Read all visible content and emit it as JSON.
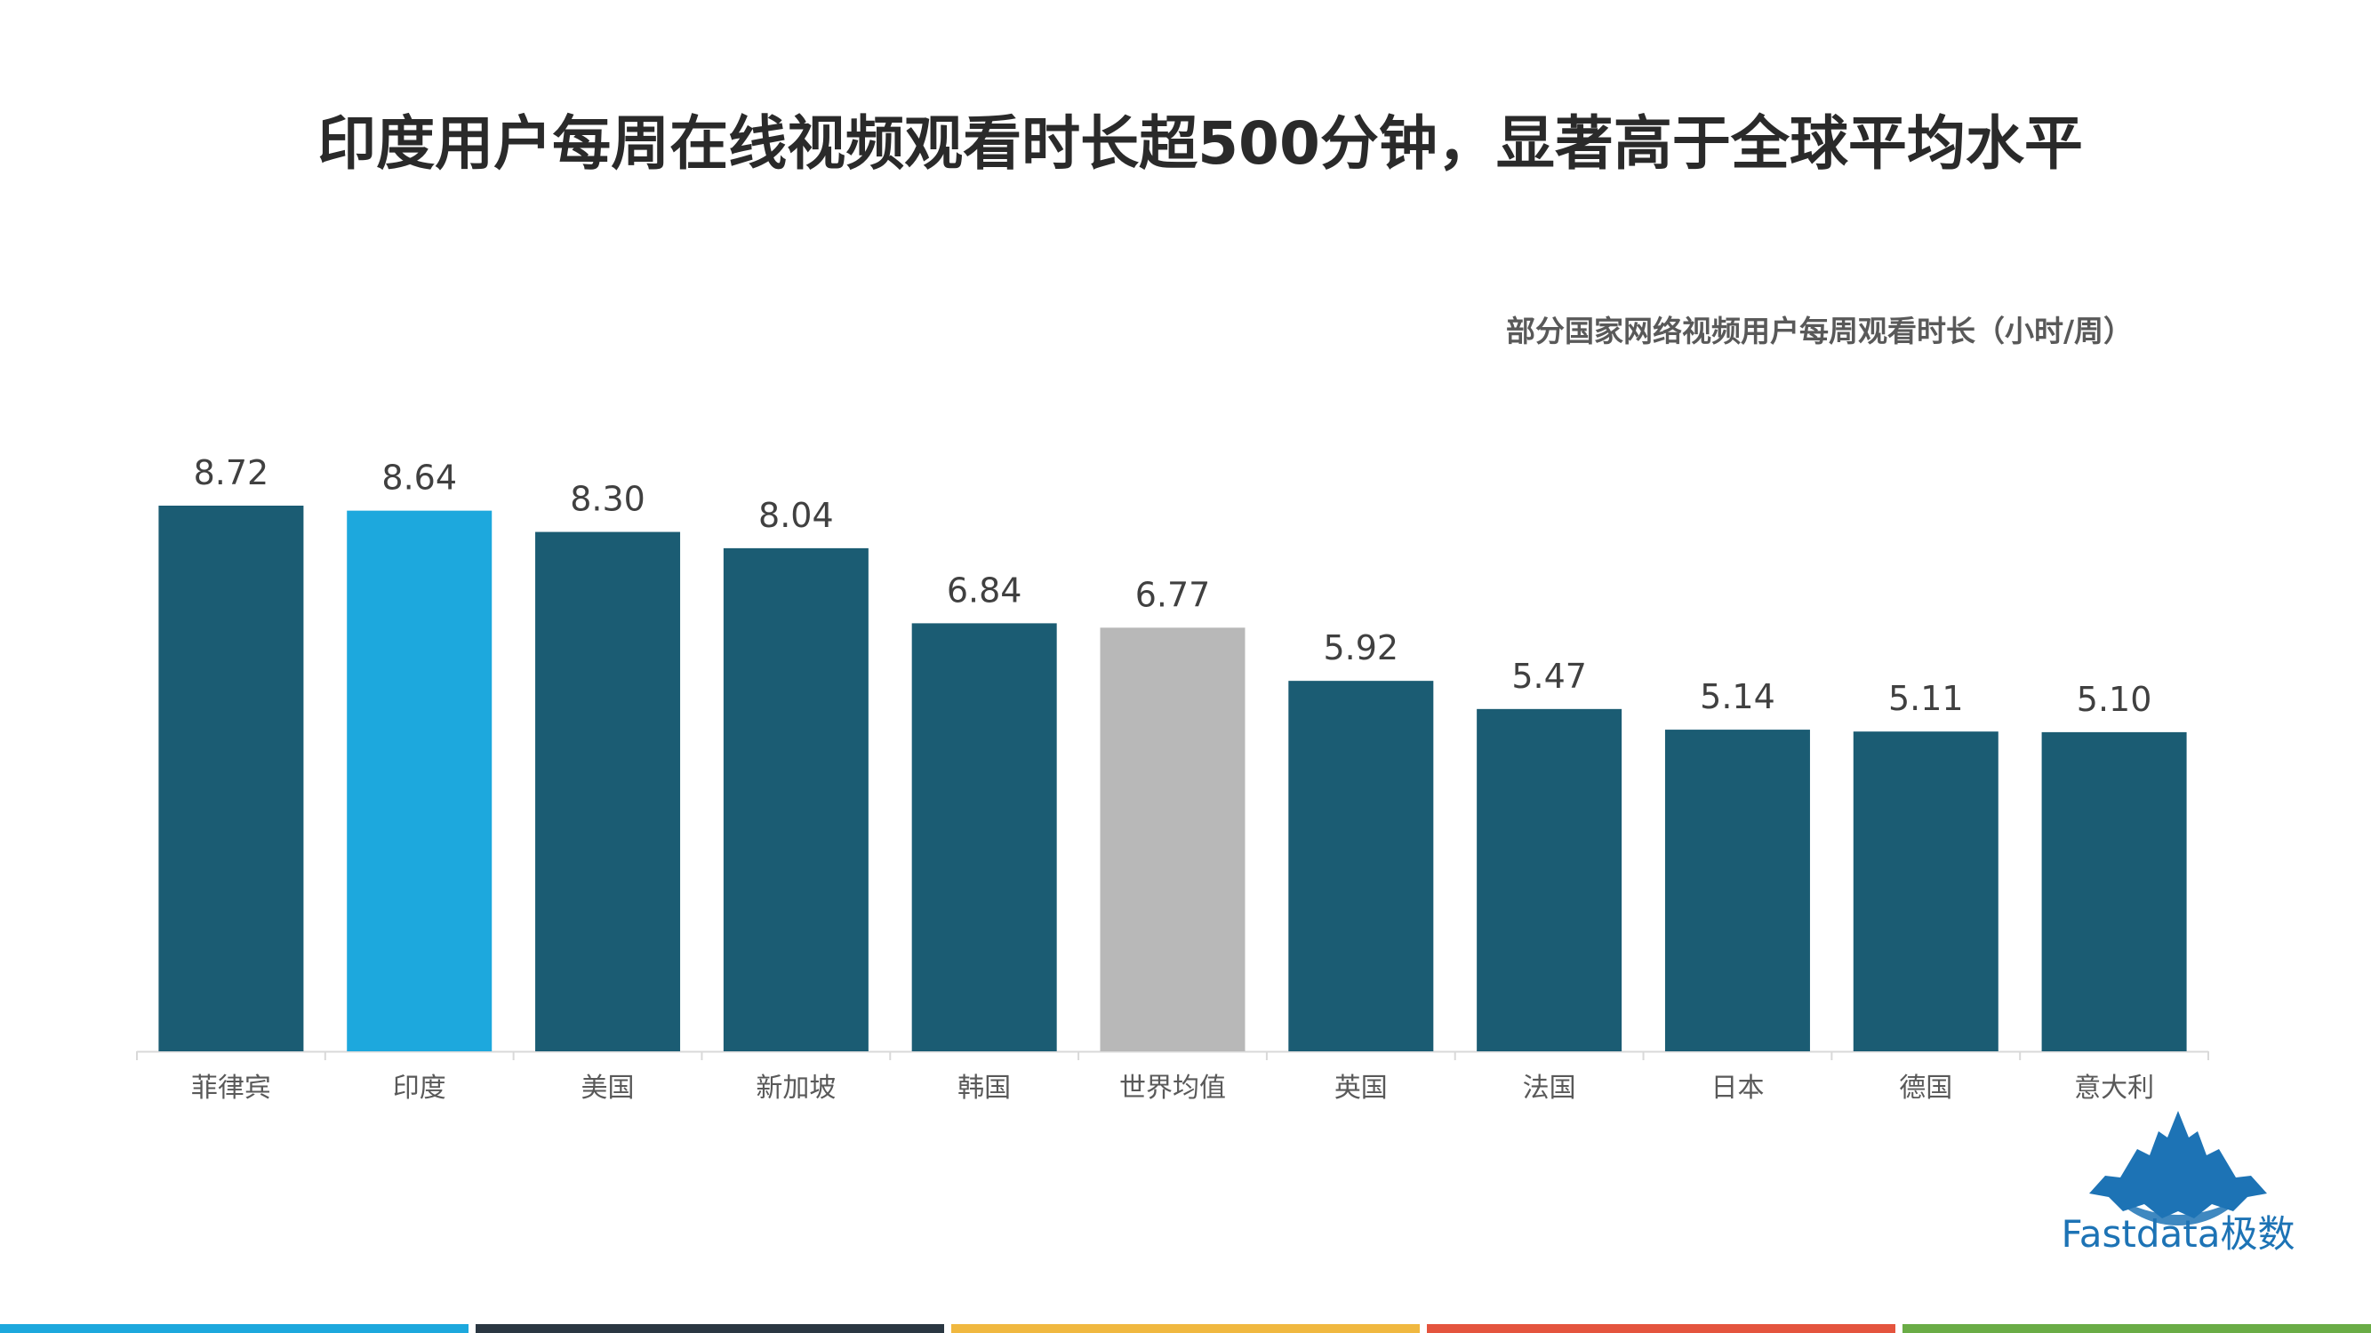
{
  "title": "印度用户每周在线视频观看时长超500分钟，显著高于全球平均水平",
  "chart_data": {
    "type": "bar",
    "title": "部分国家网络视频用户每周观看时长（小时/周）",
    "categories": [
      "菲律宾",
      "印度",
      "美国",
      "新加坡",
      "韩国",
      "世界均值",
      "英国",
      "法国",
      "日本",
      "德国",
      "意大利"
    ],
    "values": [
      8.72,
      8.64,
      8.3,
      8.04,
      6.84,
      6.77,
      5.92,
      5.47,
      5.14,
      5.11,
      5.1
    ],
    "value_labels": [
      "8.72",
      "8.64",
      "8.30",
      "8.04",
      "6.84",
      "6.77",
      "5.92",
      "5.47",
      "5.14",
      "5.11",
      "5.10"
    ],
    "highlight": {
      "印度": "#1da8dd",
      "世界均值": "#b8b8b8"
    },
    "default_color": "#1b5c73",
    "ylim": [
      0,
      8.72
    ],
    "xlabel": "",
    "ylabel": "",
    "grid": false,
    "legend": false
  },
  "brand": {
    "name": "Fastdata极数",
    "color": "#1d73b5"
  },
  "footer_colors": [
    "#1da8dd",
    "#2a3742",
    "#f0b840",
    "#e4543e",
    "#6aac46"
  ]
}
